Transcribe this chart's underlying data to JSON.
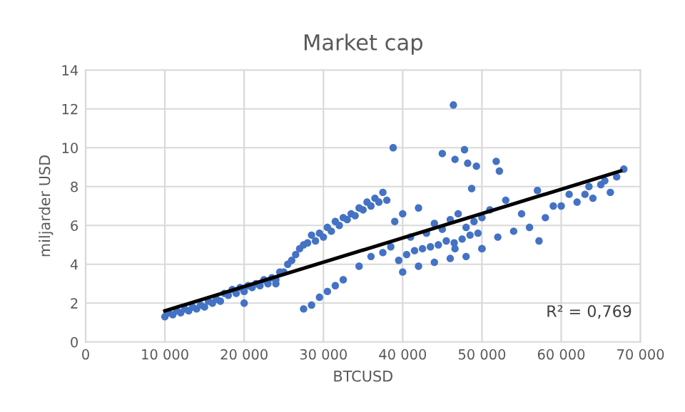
{
  "chart_data": {
    "type": "scatter",
    "title": "Market cap",
    "xlabel": "BTCUSD",
    "ylabel": "miljarder USD",
    "xlim": [
      0,
      70000
    ],
    "ylim": [
      0,
      14
    ],
    "xticks": [
      {
        "value": 0,
        "label": "0"
      },
      {
        "value": 10000,
        "label": "10 000"
      },
      {
        "value": 20000,
        "label": "20 000"
      },
      {
        "value": 30000,
        "label": "30 000"
      },
      {
        "value": 40000,
        "label": "40 000"
      },
      {
        "value": 50000,
        "label": "50 000"
      },
      {
        "value": 60000,
        "label": "60 000"
      },
      {
        "value": 70000,
        "label": "70 000"
      }
    ],
    "yticks": [
      0,
      2,
      4,
      6,
      8,
      10,
      12,
      14
    ],
    "grid": true,
    "annotations": [
      "R² = 0,769"
    ],
    "series": [
      {
        "marker": "circle",
        "color": "#4472c4",
        "x": [
          10000,
          10500,
          11000,
          11500,
          12000,
          12500,
          13000,
          13500,
          14000,
          14500,
          15000,
          15500,
          16000,
          16500,
          17000,
          17500,
          18000,
          18500,
          19000,
          19500,
          20000,
          20500,
          21000,
          21500,
          22000,
          22500,
          23000,
          23500,
          24000,
          24500,
          25000,
          25500,
          26000,
          26500,
          27000,
          27500,
          28000,
          28500,
          29000,
          29500,
          30000,
          30500,
          31000,
          31500,
          32000,
          32500,
          33000,
          33500,
          34000,
          34500,
          35000,
          35500,
          36000,
          36500,
          37000,
          37500,
          38000,
          27500,
          28500,
          29500,
          30500,
          31500,
          32500,
          34500,
          36000,
          37500,
          38500,
          39000,
          39500,
          40000,
          40500,
          41000,
          41500,
          42000,
          42500,
          43000,
          43500,
          44000,
          44500,
          45000,
          45500,
          46000,
          46500,
          47000,
          47500,
          48000,
          48500,
          49000,
          49500,
          50000,
          38800,
          46400,
          45000,
          47800,
          46600,
          48200,
          49300,
          51800,
          52200,
          48700,
          40000,
          42000,
          44000,
          46000,
          48000,
          50000,
          52000,
          54000,
          56000,
          57200,
          58000,
          60000,
          62000,
          63000,
          64000,
          65000,
          66200,
          67000,
          67900,
          51000,
          53000,
          55000,
          57000,
          59000,
          61000,
          63500,
          65500,
          46600,
          50000,
          20000,
          24000
        ],
        "values": [
          1.3,
          1.5,
          1.4,
          1.6,
          1.5,
          1.7,
          1.6,
          1.8,
          1.7,
          1.9,
          1.8,
          2.1,
          2.0,
          2.2,
          2.1,
          2.5,
          2.4,
          2.7,
          2.5,
          2.8,
          2.6,
          2.9,
          2.8,
          3.0,
          2.9,
          3.2,
          3.0,
          3.3,
          3.2,
          3.6,
          3.6,
          4.0,
          4.2,
          4.5,
          4.8,
          5.0,
          5.1,
          5.5,
          5.2,
          5.6,
          5.4,
          5.9,
          5.7,
          6.2,
          6.0,
          6.4,
          6.3,
          6.6,
          6.5,
          6.9,
          6.8,
          7.2,
          7.0,
          7.4,
          7.2,
          7.7,
          7.3,
          1.7,
          1.9,
          2.3,
          2.6,
          2.9,
          3.2,
          3.9,
          4.4,
          4.6,
          4.9,
          6.2,
          4.2,
          6.6,
          4.5,
          5.4,
          4.7,
          6.9,
          4.8,
          5.6,
          4.9,
          6.1,
          5.0,
          5.8,
          5.2,
          6.3,
          5.1,
          6.6,
          5.3,
          5.9,
          5.5,
          6.2,
          5.6,
          6.4,
          10.0,
          12.2,
          9.7,
          9.9,
          9.4,
          9.2,
          9.05,
          9.3,
          8.8,
          7.9,
          3.6,
          3.9,
          4.1,
          4.3,
          4.4,
          4.8,
          5.4,
          5.7,
          5.9,
          5.2,
          6.4,
          7.0,
          7.2,
          7.6,
          7.4,
          8.1,
          7.7,
          8.5,
          8.9,
          6.8,
          7.3,
          6.6,
          7.8,
          7.0,
          7.6,
          8.0,
          8.3,
          4.8,
          4.8,
          2.0,
          3.0
        ]
      },
      {
        "type": "line",
        "color": "#000000",
        "x": [
          10000,
          67500
        ],
        "values": [
          1.6,
          8.8
        ]
      }
    ]
  }
}
